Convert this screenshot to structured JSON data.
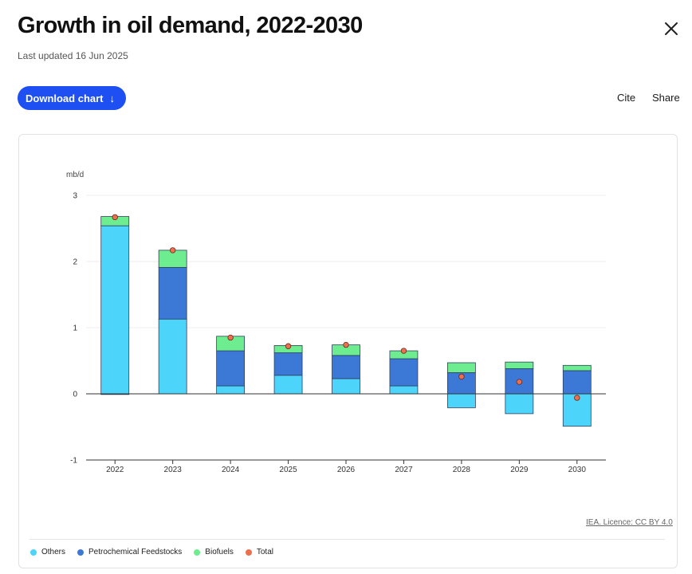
{
  "header": {
    "title": "Growth in oil demand, 2022-2030",
    "updated": "Last updated 16 Jun 2025",
    "download_label": "Download chart",
    "download_arrow": "↓",
    "cite_label": "Cite",
    "share_label": "Share"
  },
  "licence": "IEA. Licence: CC BY 4.0",
  "colors": {
    "others": "#4dd4fb",
    "petrochemical": "#3c79d6",
    "biofuels": "#6ded8f",
    "total": "#ec6f4f",
    "button": "#1d4ff3"
  },
  "chart_data": {
    "type": "bar",
    "stacked": true,
    "title": "",
    "ylabel": "mb/d",
    "xlabel": "",
    "ylim": [
      -1,
      3
    ],
    "yticks": [
      "-1",
      "0",
      "1",
      "2",
      "3"
    ],
    "categories": [
      "2022",
      "2023",
      "2024",
      "2025",
      "2026",
      "2027",
      "2028",
      "2029",
      "2030"
    ],
    "series": [
      {
        "name": "Others",
        "key": "others",
        "values": [
          2.54,
          1.13,
          0.12,
          0.28,
          0.23,
          0.12,
          -0.21,
          -0.3,
          -0.49
        ]
      },
      {
        "name": "Petrochemical Feedstocks",
        "key": "petrochemical",
        "values": [
          -0.01,
          0.78,
          0.53,
          0.34,
          0.35,
          0.41,
          0.32,
          0.38,
          0.35
        ]
      },
      {
        "name": "Biofuels",
        "key": "biofuels",
        "values": [
          0.14,
          0.26,
          0.22,
          0.11,
          0.16,
          0.12,
          0.15,
          0.1,
          0.08
        ]
      }
    ],
    "total": {
      "name": "Total",
      "values": [
        2.67,
        2.17,
        0.85,
        0.72,
        0.74,
        0.65,
        0.26,
        0.18,
        -0.06
      ]
    },
    "legend": [
      "Others",
      "Petrochemical Feedstocks",
      "Biofuels",
      "Total"
    ]
  }
}
